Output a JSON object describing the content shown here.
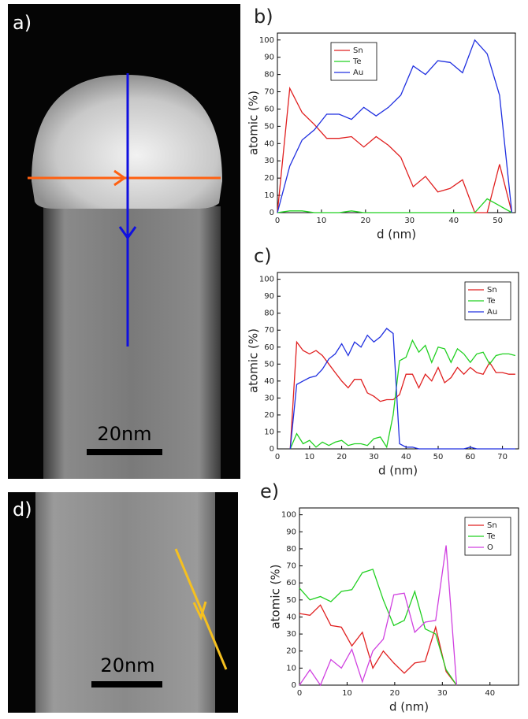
{
  "images": [
    {
      "label": "a)",
      "scale_bar": "20nm"
    },
    {
      "label": "d)",
      "scale_bar": "20nm"
    }
  ],
  "chart_data": [
    {
      "type": "line",
      "panel_label": "b)",
      "x_label": "d (nm)",
      "y_label": "atomic (%)",
      "x": [
        0,
        2.8,
        5.6,
        8.4,
        11.2,
        14,
        16.8,
        19.6,
        22.4,
        25.2,
        28,
        30.8,
        33.6,
        36.4,
        39.2,
        42,
        44.8,
        47.6,
        50.4,
        53.2
      ],
      "series": [
        {
          "name": "Sn",
          "color": "#e02020",
          "values": [
            0,
            72,
            58,
            51,
            43,
            43,
            44,
            38,
            44,
            39,
            32,
            15,
            21,
            12,
            14,
            19,
            0,
            0,
            28,
            0
          ]
        },
        {
          "name": "Te",
          "color": "#20d020",
          "values": [
            0,
            1,
            1,
            0,
            0,
            0,
            1,
            0,
            0,
            0,
            0,
            0,
            0,
            0,
            0,
            0,
            0,
            8,
            4,
            0
          ]
        },
        {
          "name": "Au",
          "color": "#2030e0",
          "values": [
            0,
            27,
            42,
            48,
            57,
            57,
            54,
            61,
            56,
            61,
            68,
            85,
            80,
            88,
            87,
            81,
            100,
            92,
            68,
            0
          ]
        }
      ],
      "xlim": [
        0,
        54
      ],
      "xticks": [
        0,
        10,
        20,
        30,
        40,
        50
      ],
      "ylim": [
        0,
        104
      ],
      "yticks": [
        0,
        10,
        20,
        30,
        40,
        50,
        60,
        70,
        80,
        90,
        100
      ],
      "legend": "upper left"
    },
    {
      "type": "line",
      "panel_label": "c)",
      "x_label": "d (nm)",
      "y_label": "atomic (%)",
      "x": [
        4,
        6,
        8,
        10,
        12,
        14,
        16,
        18,
        20,
        22,
        24,
        26,
        28,
        30,
        32,
        34,
        36,
        38,
        40,
        42,
        44,
        46,
        48,
        50,
        52,
        54,
        56,
        58,
        60,
        62,
        64,
        66,
        68,
        70,
        72,
        74
      ],
      "series": [
        {
          "name": "Sn",
          "color": "#e02020",
          "values": [
            0,
            63,
            58,
            56,
            58,
            55,
            50,
            45,
            40,
            36,
            41,
            41,
            33,
            31,
            28,
            29,
            29,
            32,
            44,
            44,
            36,
            44,
            40,
            48,
            39,
            42,
            48,
            44,
            48,
            45,
            44,
            51,
            45,
            45,
            44,
            44
          ]
        },
        {
          "name": "Te",
          "color": "#20d020",
          "values": [
            0,
            9,
            3,
            5,
            1,
            4,
            2,
            4,
            5,
            2,
            3,
            3,
            2,
            6,
            7,
            1,
            20,
            52,
            54,
            64,
            57,
            61,
            51,
            60,
            59,
            51,
            59,
            56,
            51,
            56,
            57,
            50,
            55,
            56,
            56,
            55
          ]
        },
        {
          "name": "Au",
          "color": "#2030e0",
          "values": [
            0,
            38,
            40,
            42,
            43,
            47,
            53,
            56,
            62,
            55,
            63,
            60,
            67,
            63,
            66,
            71,
            68,
            3,
            1,
            1,
            0,
            0,
            0,
            0,
            0,
            0,
            0,
            0,
            1,
            0,
            0,
            0,
            0,
            0,
            0,
            0
          ]
        }
      ],
      "xlim": [
        0,
        75
      ],
      "xticks": [
        0,
        10,
        20,
        30,
        40,
        50,
        60,
        70
      ],
      "ylim": [
        0,
        104
      ],
      "yticks": [
        0,
        10,
        20,
        30,
        40,
        50,
        60,
        70,
        80,
        90,
        100
      ],
      "legend": "upper right"
    },
    {
      "type": "line",
      "panel_label": "e)",
      "x_label": "d (nm)",
      "y_label": "atomic (%)",
      "x": [
        0,
        2.2,
        4.4,
        6.6,
        8.8,
        11,
        13.2,
        15.4,
        17.6,
        19.8,
        22,
        24.2,
        26.4,
        28.6,
        30.8,
        33
      ],
      "series": [
        {
          "name": "Sn",
          "color": "#e02020",
          "values": [
            42,
            41,
            47,
            35,
            34,
            23,
            31,
            10,
            20,
            13,
            7,
            13,
            14,
            34,
            8,
            0
          ]
        },
        {
          "name": "Te",
          "color": "#20d020",
          "values": [
            57,
            50,
            52,
            49,
            55,
            56,
            66,
            68,
            50,
            35,
            38,
            55,
            33,
            30,
            9,
            0
          ]
        },
        {
          "name": "O",
          "color": "#d040e0",
          "values": [
            0,
            9,
            0,
            15,
            10,
            21,
            2,
            20,
            27,
            53,
            54,
            31,
            37,
            38,
            82,
            0
          ]
        }
      ],
      "xlim": [
        0,
        46
      ],
      "xticks": [
        0,
        10,
        20,
        30,
        40
      ],
      "ylim": [
        0,
        104
      ],
      "yticks": [
        0,
        10,
        20,
        30,
        40,
        50,
        60,
        70,
        80,
        90,
        100
      ],
      "legend": "upper right"
    }
  ]
}
